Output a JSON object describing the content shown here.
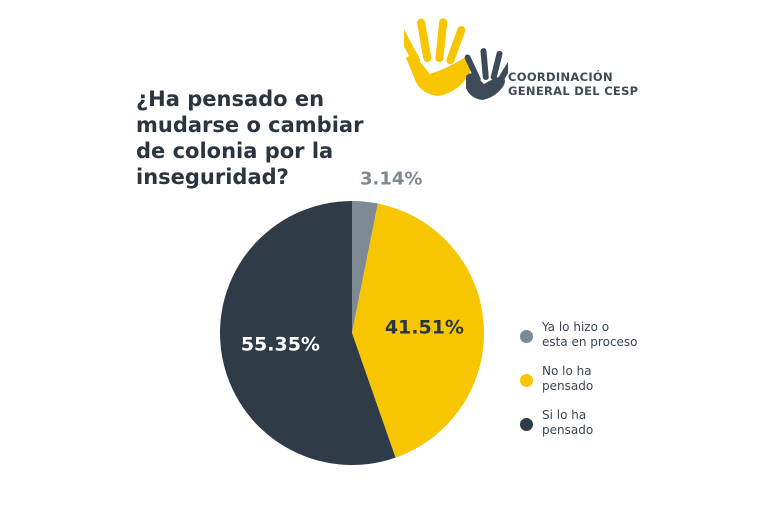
{
  "header": {
    "org_name_lines": [
      "COORDINACIÓN",
      "GENERAL DEL CESP"
    ]
  },
  "title_lines": [
    "¿Ha pensado en",
    "mudarse o cambiar",
    "de colonia por la",
    "inseguridad?"
  ],
  "colors": {
    "title": "#2b3540",
    "brand_yellow": "#f7c600",
    "brand_dark": "#3d4a57",
    "gray_slice": "#7d8995",
    "dark_slice": "#2f3b47"
  },
  "chart_data": {
    "type": "pie",
    "title": "¿Ha pensado en mudarse o cambiar de colonia por la inseguridad?",
    "start": "12 o'clock",
    "direction": "clockwise",
    "slices": [
      {
        "key": "ya-lo-hizo",
        "label_lines": [
          "Ya lo hizo o",
          "esta en proceso"
        ],
        "value": 3.14,
        "value_label": "3.14%",
        "color": "#7d8995",
        "label_position": "outside"
      },
      {
        "key": "no-lo-ha-pensado",
        "label_lines": [
          "No lo ha",
          "pensado"
        ],
        "value": 41.51,
        "value_label": "41.51%",
        "color": "#f7c600",
        "label_position": "inside"
      },
      {
        "key": "si-lo-ha-pensado",
        "label_lines": [
          "Si lo ha",
          "pensado"
        ],
        "value": 55.35,
        "value_label": "55.35%",
        "color": "#2f3b47",
        "label_position": "inside"
      }
    ],
    "legend_position": "right"
  }
}
